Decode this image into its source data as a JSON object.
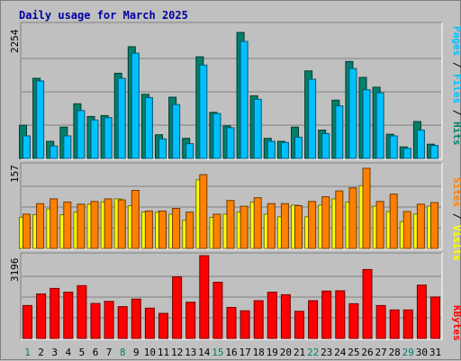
{
  "chart_data": {
    "type": "bar",
    "title": "Daily usage for March 2025",
    "categories": [
      "1",
      "2",
      "3",
      "4",
      "5",
      "6",
      "7",
      "8",
      "9",
      "10",
      "11",
      "12",
      "13",
      "14",
      "15",
      "16",
      "17",
      "18",
      "19",
      "20",
      "21",
      "22",
      "23",
      "24",
      "25",
      "26",
      "27",
      "28",
      "29",
      "30",
      "31"
    ],
    "weekend_days": [
      "1",
      "8",
      "15",
      "22",
      "29"
    ],
    "panels": [
      {
        "id": "top",
        "ymax_label": "2254",
        "ylim": [
          0,
          2254
        ],
        "legend": [
          "Pages",
          "Files",
          "Hits"
        ],
        "legend_colors": [
          "#00c0ff",
          "#00c0ff",
          "#00806b"
        ],
        "series": [
          {
            "name": "Hits",
            "color": "#00806b",
            "values": [
              560,
              1355,
              290,
              530,
              925,
              710,
              725,
              1440,
              1890,
              1085,
              400,
              1035,
              340,
              1720,
              780,
              550,
              2130,
              1060,
              340,
              290,
              530,
              1480,
              480,
              985,
              1640,
              1370,
              1205,
              410,
              195,
              625,
              240
            ]
          },
          {
            "name": "Files",
            "color": "#00c0ff",
            "values": [
              380,
              1310,
              210,
              380,
              810,
              650,
              690,
              1355,
              1780,
              1030,
              330,
              910,
              250,
              1580,
              760,
              520,
              1980,
              1000,
              290,
              270,
              360,
              1340,
              420,
              890,
              1520,
              1160,
              1110,
              380,
              170,
              480,
              220
            ]
          }
        ]
      },
      {
        "id": "middle",
        "ymax_label": "157",
        "ylim": [
          0,
          157
        ],
        "legend": [
          "Sites",
          "Visits"
        ],
        "legend_colors": [
          "#ff8000",
          "#ffff00"
        ],
        "series": [
          {
            "name": "Visits",
            "color": "#ffff00",
            "values": [
              59,
              64,
              75,
              64,
              69,
              84,
              88,
              94,
              81,
              69,
              69,
              65,
              53,
              130,
              59,
              65,
              69,
              88,
              65,
              60,
              82,
              60,
              82,
              94,
              88,
              119,
              80,
              70,
              51,
              65,
              80
            ]
          },
          {
            "name": "Sites",
            "color": "#ff8000",
            "values": [
              65,
              85,
              94,
              88,
              84,
              89,
              94,
              92,
              110,
              71,
              71,
              76,
              69,
              140,
              65,
              91,
              80,
              96,
              85,
              85,
              81,
              89,
              98,
              109,
              115,
              152,
              89,
              103,
              70,
              84,
              87
            ]
          }
        ]
      },
      {
        "id": "bottom",
        "ymax_label": "3196",
        "ylim": [
          0,
          3196
        ],
        "legend": [
          "KBytes"
        ],
        "legend_colors": [
          "#ff0000"
        ],
        "series": [
          {
            "name": "KBytes",
            "color": "#ff0000",
            "values": [
              1270,
              1720,
              1930,
              1790,
              2040,
              1350,
              1430,
              1230,
              1520,
              1170,
              970,
              2380,
              1400,
              3196,
              2170,
              1200,
              1070,
              1460,
              1790,
              1690,
              1050,
              1460,
              1830,
              1840,
              1340,
              2660,
              1270,
              1100,
              1100,
              2060,
              1600
            ]
          }
        ]
      }
    ]
  }
}
